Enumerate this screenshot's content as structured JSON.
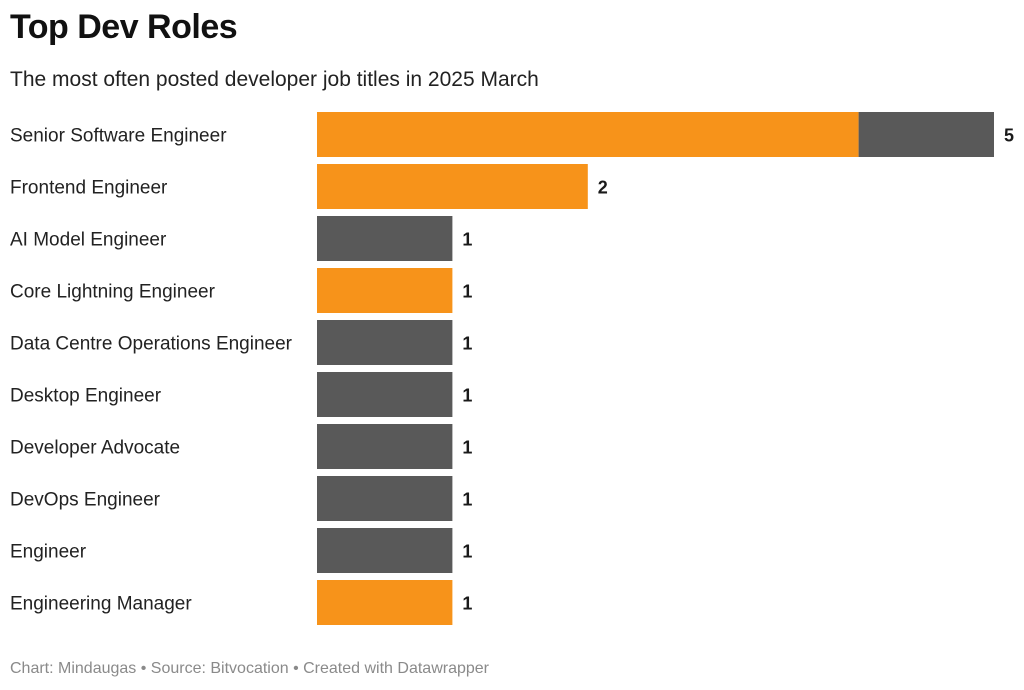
{
  "chart_data": {
    "type": "bar",
    "orientation": "horizontal",
    "stacked": true,
    "title": "Top Dev Roles",
    "subtitle": "The most often posted developer job titles in 2025 March",
    "categories": [
      "Senior Software Engineer",
      "Frontend Engineer",
      "AI Model Engineer",
      "Core Lightning Engineer",
      "Data Centre Operations Engineer",
      "Desktop Engineer",
      "Developer Advocate",
      "DevOps Engineer",
      "Engineer",
      "Engineering Manager"
    ],
    "totals": [
      5,
      2,
      1,
      1,
      1,
      1,
      1,
      1,
      1,
      1
    ],
    "series": [
      {
        "color": "#f7931a",
        "values": [
          4,
          2,
          0,
          1,
          0,
          0,
          0,
          0,
          0,
          1
        ]
      },
      {
        "color": "#595959",
        "values": [
          1,
          0,
          1,
          0,
          1,
          1,
          1,
          1,
          1,
          0
        ]
      }
    ],
    "xlim": [
      0,
      5
    ],
    "grid": false,
    "legend": "none"
  },
  "footer": "Chart: Mindaugas • Source: Bitvocation • Created with Datawrapper"
}
